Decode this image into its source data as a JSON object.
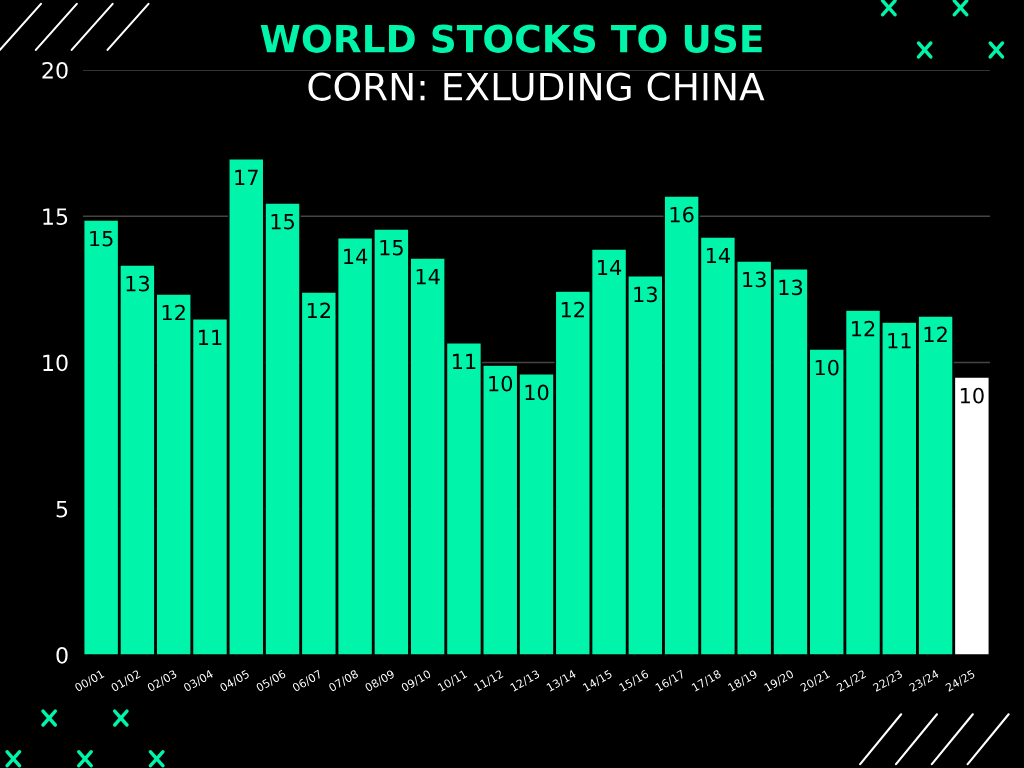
{
  "chart_data": {
    "type": "bar",
    "title": "WORLD STOCKS TO USE",
    "subtitle": "CORN: EXLUDING CHINA",
    "categories": [
      "00/01",
      "01/02",
      "02/03",
      "03/04",
      "04/05",
      "05/06",
      "06/07",
      "07/08",
      "08/09",
      "09/10",
      "10/11",
      "11/12",
      "12/13",
      "13/14",
      "14/15",
      "15/16",
      "16/17",
      "17/18",
      "18/19",
      "19/20",
      "20/21",
      "21/22",
      "22/23",
      "23/24",
      "24/25"
    ],
    "values": [
      14.87,
      13.33,
      12.34,
      11.49,
      16.96,
      15.45,
      12.41,
      14.26,
      14.56,
      13.57,
      10.67,
      9.91,
      9.61,
      12.44,
      13.88,
      12.96,
      15.69,
      14.29,
      13.47,
      13.2,
      10.46,
      11.79,
      11.38,
      11.59,
      9.5
    ],
    "value_labels": [
      "15",
      "13",
      "12",
      "11",
      "17",
      "15",
      "12",
      "14",
      "15",
      "14",
      "11",
      "10",
      "10",
      "12",
      "14",
      "13",
      "16",
      "14",
      "13",
      "13",
      "10",
      "12",
      "11",
      "12",
      "10"
    ],
    "colors": [
      "#00f5aa",
      "#00f5aa",
      "#00f5aa",
      "#00f5aa",
      "#00f5aa",
      "#00f5aa",
      "#00f5aa",
      "#00f5aa",
      "#00f5aa",
      "#00f5aa",
      "#00f5aa",
      "#00f5aa",
      "#00f5aa",
      "#00f5aa",
      "#00f5aa",
      "#00f5aa",
      "#00f5aa",
      "#00f5aa",
      "#00f5aa",
      "#00f5aa",
      "#00f5aa",
      "#00f5aa",
      "#00f5aa",
      "#00f5aa",
      "#ffffff"
    ],
    "ylim": [
      0,
      20
    ],
    "yticks": [
      0,
      5,
      10,
      15,
      20
    ],
    "grid": "y",
    "legend": false
  }
}
